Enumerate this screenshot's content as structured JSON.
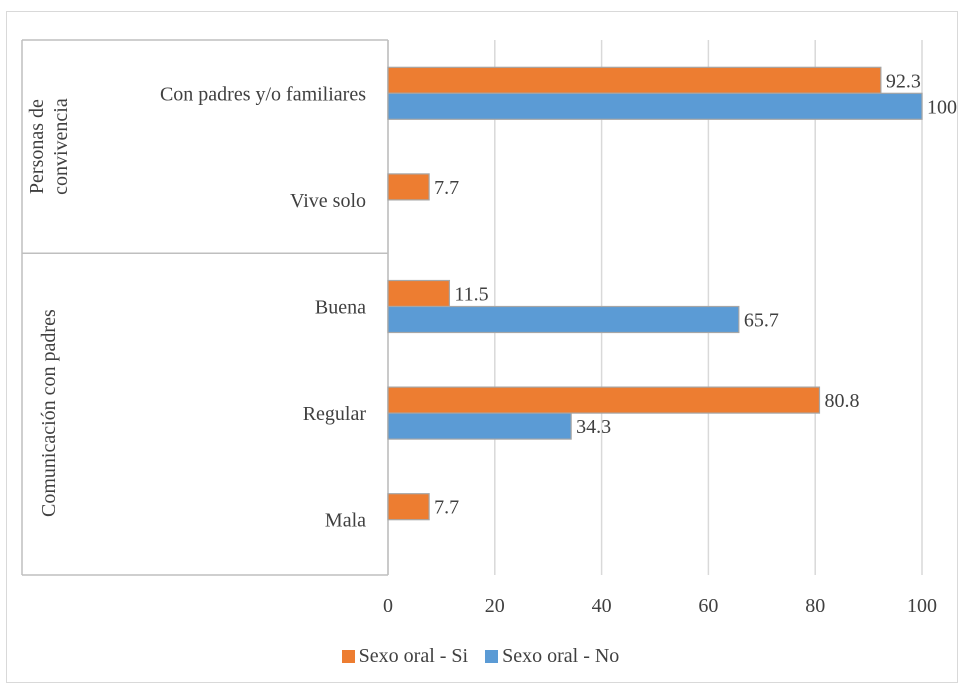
{
  "chart_data": {
    "type": "bar",
    "orientation": "horizontal",
    "groups": [
      {
        "name": "Personas de convivencia",
        "categories": [
          "Con padres y/o familiares",
          "Vive solo"
        ]
      },
      {
        "name": "Comunicación con padres",
        "categories": [
          "Buena",
          "Regular",
          "Mala"
        ]
      }
    ],
    "categories": [
      "Con padres y/o familiares",
      "Vive solo",
      "Buena",
      "Regular",
      "Mala"
    ],
    "series": [
      {
        "name": "Sexo oral -  Si",
        "color": "#ED7D31",
        "values": [
          92.3,
          7.7,
          11.5,
          80.8,
          7.7
        ],
        "labels": [
          "92.3",
          "7.7",
          "11.5",
          "80.8",
          "7.7"
        ]
      },
      {
        "name": "Sexo oral -  No",
        "color": "#5B9BD5",
        "values": [
          100,
          null,
          65.7,
          34.3,
          null
        ],
        "labels": [
          "100",
          "",
          "65.7",
          "34.3",
          ""
        ]
      }
    ],
    "xlim": [
      0,
      100
    ],
    "xticks": [
      "0",
      "20",
      "40",
      "60",
      "80",
      "100"
    ],
    "grid": true,
    "legend_position": "bottom"
  }
}
